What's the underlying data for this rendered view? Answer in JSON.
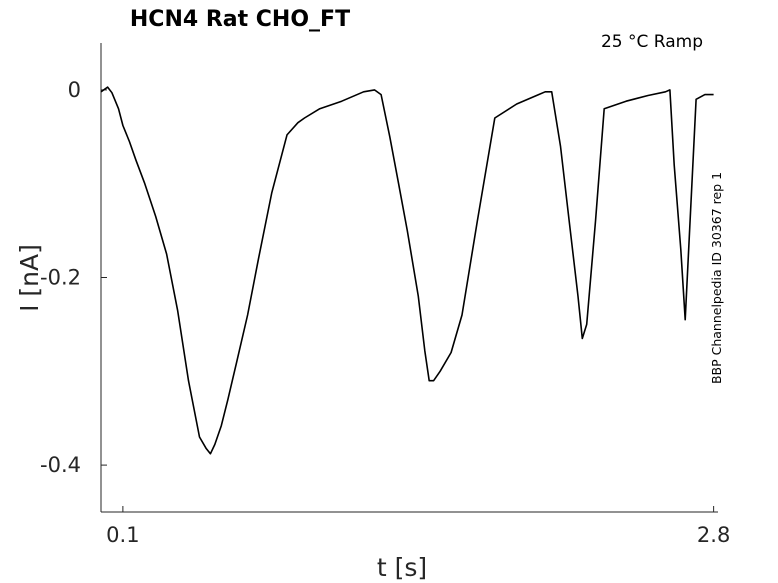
{
  "chart_data": {
    "type": "line",
    "title": "HCN4  Rat  CHO_FT",
    "subtitle": "25 °C  Ramp",
    "side_label": "BBP Channelpedia ID 30367 rep 1",
    "xlabel": "t [s]",
    "ylabel": "I [nA]",
    "xlim": [
      0.0,
      2.82
    ],
    "ylim": [
      -0.45,
      0.05
    ],
    "xticks": [
      {
        "value": 0.1,
        "label": "0.1"
      },
      {
        "value": 2.8,
        "label": "2.8"
      }
    ],
    "yticks": [
      {
        "value": 0.0,
        "label": "0"
      },
      {
        "value": -0.2,
        "label": "-0.2"
      },
      {
        "value": -0.4,
        "label": "-0.4"
      }
    ],
    "grid": false,
    "series": [
      {
        "color": "#000000",
        "x": [
          0.0,
          0.03,
          0.05,
          0.08,
          0.1,
          0.13,
          0.16,
          0.2,
          0.25,
          0.3,
          0.35,
          0.4,
          0.45,
          0.48,
          0.5,
          0.52,
          0.55,
          0.58,
          0.62,
          0.67,
          0.72,
          0.78,
          0.85,
          0.9,
          0.93,
          1.0,
          1.1,
          1.2,
          1.25,
          1.28,
          1.32,
          1.36,
          1.4,
          1.45,
          1.48,
          1.5,
          1.52,
          1.55,
          1.6,
          1.65,
          1.72,
          1.8,
          1.9,
          2.0,
          2.03,
          2.06,
          2.1,
          2.14,
          2.18,
          2.2,
          2.22,
          2.26,
          2.3,
          2.4,
          2.5,
          2.58,
          2.6,
          2.62,
          2.65,
          2.67,
          2.69,
          2.72,
          2.76,
          2.8
        ],
        "y": [
          -0.002,
          0.003,
          -0.003,
          -0.02,
          -0.038,
          -0.055,
          -0.075,
          -0.1,
          -0.135,
          -0.175,
          -0.235,
          -0.31,
          -0.37,
          -0.382,
          -0.388,
          -0.378,
          -0.358,
          -0.33,
          -0.29,
          -0.24,
          -0.18,
          -0.11,
          -0.048,
          -0.035,
          -0.03,
          -0.02,
          -0.012,
          -0.002,
          0.0,
          -0.005,
          -0.05,
          -0.1,
          -0.15,
          -0.22,
          -0.278,
          -0.31,
          -0.31,
          -0.3,
          -0.28,
          -0.24,
          -0.14,
          -0.03,
          -0.015,
          -0.005,
          -0.002,
          -0.002,
          -0.06,
          -0.14,
          -0.22,
          -0.265,
          -0.25,
          -0.14,
          -0.02,
          -0.012,
          -0.006,
          -0.002,
          0.0,
          -0.08,
          -0.17,
          -0.245,
          -0.15,
          -0.01,
          -0.005,
          -0.005
        ]
      }
    ]
  }
}
